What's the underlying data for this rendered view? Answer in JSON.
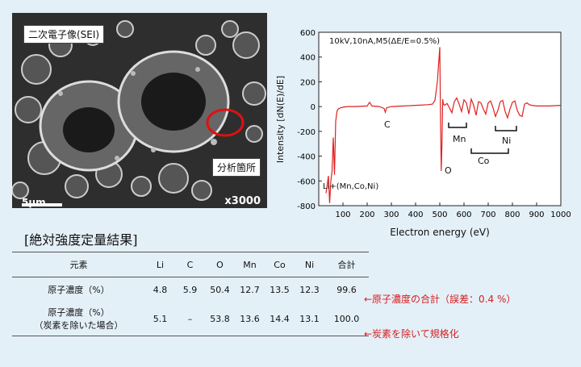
{
  "sem": {
    "title": "二次電子像(SEI)",
    "spot_label": "分析箇所",
    "scale": "5μm",
    "magnification": "x3000"
  },
  "spectrum": {
    "annotation": "10kV,10nA,M5(ΔE/E=0.5%)",
    "xlabel": "Electron energy (eV)",
    "ylabel": "Intensity [dN(E)/dE]",
    "peak_labels": [
      "Li+(Mn,Co,Ni)",
      "C",
      "O",
      "Mn",
      "Co",
      "Ni"
    ],
    "colors": {
      "line": "#e02020"
    }
  },
  "chart_data": {
    "type": "line",
    "xlim": [
      0,
      1000
    ],
    "ylim": [
      -800,
      600
    ],
    "xticks": [
      "100",
      "200",
      "300",
      "400",
      "500",
      "600",
      "700",
      "800",
      "900",
      "1000"
    ],
    "yticks": [
      "600",
      "400",
      "200",
      "0",
      "-200",
      "-400",
      "-600",
      "-800"
    ],
    "series": [
      {
        "x": [
          30,
          40,
          45,
          50,
          55,
          60,
          65,
          70,
          75,
          80,
          90,
          100,
          120,
          150,
          200,
          210,
          220,
          250,
          270,
          275,
          280,
          300,
          350,
          400,
          450,
          470,
          480,
          490,
          500,
          503,
          506,
          509,
          512,
          515,
          520,
          530,
          540,
          550,
          560,
          570,
          580,
          590,
          600,
          610,
          620,
          630,
          640,
          650,
          660,
          670,
          680,
          690,
          700,
          710,
          720,
          730,
          740,
          750,
          760,
          770,
          780,
          790,
          800,
          810,
          820,
          830,
          840,
          850,
          860,
          870,
          880,
          900,
          950,
          1000
        ],
        "y": [
          -700,
          -560,
          -780,
          -600,
          -520,
          -250,
          -550,
          -120,
          -40,
          -20,
          -10,
          -5,
          0,
          0,
          5,
          35,
          5,
          0,
          -15,
          -45,
          -10,
          0,
          5,
          10,
          15,
          20,
          50,
          200,
          480,
          -100,
          -520,
          -300,
          60,
          20,
          10,
          25,
          -10,
          -50,
          40,
          70,
          20,
          -40,
          55,
          30,
          -60,
          60,
          10,
          -70,
          40,
          30,
          -20,
          -60,
          30,
          45,
          -10,
          -80,
          -30,
          40,
          50,
          -40,
          -90,
          -20,
          35,
          45,
          -30,
          -70,
          -80,
          20,
          30,
          15,
          10,
          5,
          5,
          10
        ]
      }
    ]
  },
  "results": {
    "title": "[絶対強度定量結果]",
    "headers": [
      "元素",
      "Li",
      "C",
      "O",
      "Mn",
      "Co",
      "Ni",
      "合計"
    ],
    "rows": [
      {
        "label1": "原子濃度（%）",
        "label2": "",
        "values": [
          "4.8",
          "5.9",
          "50.4",
          "12.7",
          "13.5",
          "12.3",
          "99.6"
        ],
        "note": "←原子濃度の合計（誤差：0.4 %）"
      },
      {
        "label1": "原子濃度（%）",
        "label2": "（炭素を除いた場合）",
        "values": [
          "5.1",
          "–",
          "53.8",
          "13.6",
          "14.4",
          "13.1",
          "100.0"
        ],
        "note": "←炭素を除いて規格化"
      }
    ]
  }
}
